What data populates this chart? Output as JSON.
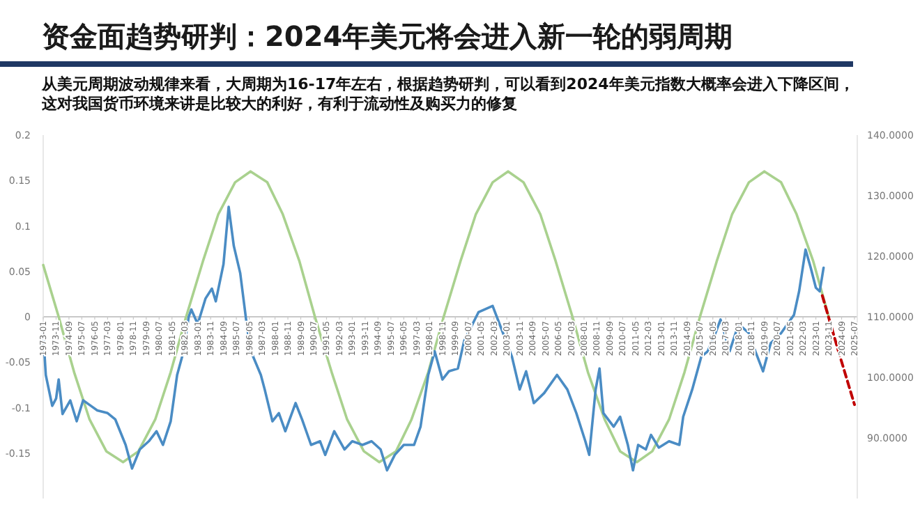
{
  "chart_data": {
    "type": "line",
    "title": "资金面趋势研判：2024年美元将会进入新一轮的弱周期",
    "subtitle": "从美元周期波动规律来看，大周期为16-17年左右，根据趋势研判，可以看到2024年美元指数大概率会进入下降区间，这对我国货币环境来讲是比较大的利好，有利于流动性及购买力的修复",
    "xlim": [
      "1973-01",
      "2025-07"
    ],
    "xticks": [
      "1973-01",
      "1973-11",
      "1974-09",
      "1975-07",
      "1976-05",
      "1977-03",
      "1978-01",
      "1978-11",
      "1979-09",
      "1980-07",
      "1981-05",
      "1982-03",
      "1983-01",
      "1983-11",
      "1984-09",
      "1985-07",
      "1986-05",
      "1987-03",
      "1988-01",
      "1988-11",
      "1989-09",
      "1990-07",
      "1991-05",
      "1992-03",
      "1993-01",
      "1993-11",
      "1994-09",
      "1995-07",
      "1996-05",
      "1997-03",
      "1998-01",
      "1998-11",
      "1999-09",
      "2000-07",
      "2001-05",
      "2002-03",
      "2003-01",
      "2003-11",
      "2004-09",
      "2005-07",
      "2006-05",
      "2007-03",
      "2008-01",
      "2008-11",
      "2009-09",
      "2010-07",
      "2011-05",
      "2012-03",
      "2013-01",
      "2013-11",
      "2014-09",
      "2015-07",
      "2016-05",
      "2017-03",
      "2018-01",
      "2018-11",
      "2019-09",
      "2020-07",
      "2021-05",
      "2022-03",
      "2023-01",
      "2023-11",
      "2024-09",
      "2025-07"
    ],
    "ylim": [
      -0.2,
      0.2
    ],
    "yticks": [
      -0.15,
      -0.1,
      -0.05,
      0,
      0.05,
      0.1,
      0.15,
      0.2
    ],
    "y2lim": [
      80,
      140
    ],
    "y2ticks": [
      {
        "value": 90,
        "label": "90.0000"
      },
      {
        "value": 100,
        "label": "100.0000"
      },
      {
        "value": 110,
        "label": "110.0000"
      },
      {
        "value": 120,
        "label": "120.0000"
      },
      {
        "value": 130,
        "label": "130.0000"
      },
      {
        "value": 140,
        "label": "140.0000"
      }
    ],
    "series": [
      {
        "color": "#a9d18e",
        "x": [
          "1973-01",
          "1974-01",
          "1975-01",
          "1976-01",
          "1977-02",
          "1978-03",
          "1979-03",
          "1980-04",
          "1981-04",
          "1982-04",
          "1983-05",
          "1984-05",
          "1985-06",
          "1986-06",
          "1987-07",
          "1988-07",
          "1989-08",
          "1990-08",
          "1991-09",
          "1992-09",
          "1993-10",
          "1994-10",
          "1995-11",
          "1996-11",
          "1997-12",
          "1998-12",
          "2000-01",
          "2001-01",
          "2002-02",
          "2003-02",
          "2004-02",
          "2005-03",
          "2006-03",
          "2007-04",
          "2008-04",
          "2009-05",
          "2010-05",
          "2011-06",
          "2012-06",
          "2013-07",
          "2014-07",
          "2015-07",
          "2016-08",
          "2017-08",
          "2018-09",
          "2019-09",
          "2020-10",
          "2021-10",
          "2022-11",
          "2023-11"
        ],
        "values": [
          0.057,
          0,
          -0.061,
          -0.113,
          -0.148,
          -0.16,
          -0.148,
          -0.113,
          -0.061,
          0,
          0.061,
          0.113,
          0.148,
          0.16,
          0.148,
          0.113,
          0.061,
          0,
          -0.061,
          -0.113,
          -0.148,
          -0.16,
          -0.148,
          -0.113,
          -0.061,
          0,
          0.061,
          0.113,
          0.148,
          0.16,
          0.148,
          0.113,
          0.061,
          0,
          -0.061,
          -0.113,
          -0.148,
          -0.16,
          -0.148,
          -0.113,
          -0.061,
          0,
          0.061,
          0.113,
          0.148,
          0.16,
          0.148,
          0.113,
          0.061,
          0
        ]
      },
      {
        "color": "#4a8cc4",
        "x": [
          "1973-01",
          "1973-03",
          "1973-08",
          "1973-11",
          "1974-01",
          "1974-04",
          "1974-10",
          "1975-03",
          "1975-08",
          "1976-02",
          "1976-07",
          "1977-03",
          "1977-09",
          "1978-05",
          "1978-10",
          "1979-04",
          "1979-11",
          "1980-05",
          "1980-10",
          "1981-04",
          "1981-09",
          "1982-02",
          "1982-06",
          "1982-08",
          "1983-01",
          "1983-07",
          "1983-12",
          "1984-03",
          "1984-09",
          "1985-01",
          "1985-05",
          "1985-10",
          "1986-03",
          "1986-06",
          "1987-02",
          "1987-05",
          "1987-11",
          "1988-04",
          "1988-09",
          "1989-05",
          "1989-10",
          "1990-05",
          "1990-12",
          "1991-04",
          "1991-11",
          "1992-07",
          "1993-01",
          "1993-09",
          "1994-04",
          "1994-11",
          "1995-04",
          "1995-10",
          "1996-05",
          "1997-01",
          "1997-06",
          "1997-12",
          "1998-05",
          "1998-11",
          "1999-04",
          "1999-11",
          "2000-04",
          "2001-03",
          "2002-02",
          "2002-09",
          "2003-05",
          "2003-11",
          "2004-04",
          "2004-10",
          "2005-06",
          "2006-04",
          "2006-12",
          "2007-07",
          "2008-02",
          "2008-05",
          "2008-10",
          "2009-01",
          "2009-04",
          "2009-12",
          "2010-05",
          "2010-11",
          "2011-03",
          "2011-07",
          "2012-01",
          "2012-05",
          "2012-11",
          "2013-07",
          "2014-03",
          "2014-06",
          "2015-01",
          "2015-08",
          "2016-01",
          "2016-07",
          "2016-11",
          "2017-06",
          "2018-01",
          "2018-09",
          "2019-02",
          "2019-08",
          "2019-11",
          "2020-02",
          "2020-10",
          "2021-08",
          "2021-12",
          "2022-05",
          "2022-09",
          "2023-01",
          "2023-04",
          "2023-07"
        ],
        "values": [
          -0.018,
          -0.064,
          -0.098,
          -0.09,
          -0.069,
          -0.107,
          -0.092,
          -0.115,
          -0.092,
          -0.098,
          -0.103,
          -0.106,
          -0.113,
          -0.141,
          -0.167,
          -0.146,
          -0.137,
          -0.126,
          -0.141,
          -0.115,
          -0.064,
          -0.038,
          0,
          0.008,
          -0.008,
          0.02,
          0.031,
          0.017,
          0.058,
          0.121,
          0.078,
          0.048,
          -0.008,
          -0.037,
          -0.064,
          -0.08,
          -0.115,
          -0.106,
          -0.126,
          -0.095,
          -0.113,
          -0.141,
          -0.137,
          -0.152,
          -0.126,
          -0.146,
          -0.137,
          -0.141,
          -0.137,
          -0.146,
          -0.169,
          -0.152,
          -0.141,
          -0.141,
          -0.121,
          -0.064,
          -0.038,
          -0.069,
          -0.06,
          -0.057,
          -0.026,
          0.005,
          0.012,
          -0.014,
          -0.044,
          -0.08,
          -0.06,
          -0.095,
          -0.084,
          -0.064,
          -0.08,
          -0.106,
          -0.137,
          -0.152,
          -0.08,
          -0.057,
          -0.106,
          -0.121,
          -0.11,
          -0.141,
          -0.169,
          -0.141,
          -0.146,
          -0.13,
          -0.144,
          -0.137,
          -0.141,
          -0.11,
          -0.08,
          -0.044,
          -0.038,
          -0.018,
          -0.003,
          -0.038,
          -0.008,
          -0.018,
          -0.038,
          -0.06,
          -0.044,
          -0.029,
          -0.018,
          0.002,
          0.028,
          0.074,
          0.054,
          0.032,
          0.028,
          0.054
        ]
      },
      {
        "color": "#c00000",
        "axis": "y2",
        "line_style": "dashed",
        "x": [
          "2023-06",
          "2024-07",
          "2025-07"
        ],
        "values": [
          113.5,
          104,
          95.5
        ]
      }
    ]
  }
}
